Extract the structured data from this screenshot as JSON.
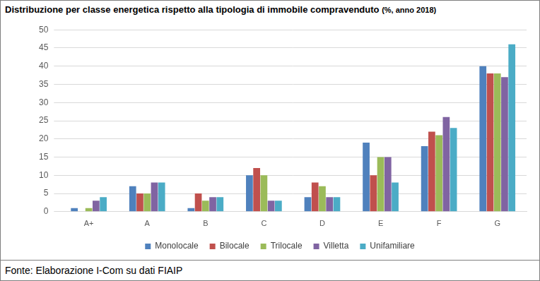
{
  "chart_data": {
    "type": "bar",
    "title": "Distribuzione per classe energetica rispetto alla tipologia di immobile compravenduto",
    "subtitle": "(%, anno 2018)",
    "annotations": [
      "Fonte: Elaborazione I-Com su dati FIAIP"
    ],
    "categories": [
      "A+",
      "A",
      "B",
      "C",
      "D",
      "E",
      "F",
      "G"
    ],
    "series": [
      {
        "name": "Monolocale",
        "color": "#4f81bd",
        "values": [
          1,
          7,
          1,
          10,
          4,
          19,
          18,
          40
        ]
      },
      {
        "name": "Bilocale",
        "color": "#c0504d",
        "values": [
          0,
          5,
          5,
          12,
          8,
          10,
          22,
          38
        ]
      },
      {
        "name": "Trilocale",
        "color": "#9bbb59",
        "values": [
          1,
          5,
          3,
          10,
          7,
          15,
          21,
          38
        ]
      },
      {
        "name": "Villetta",
        "color": "#8064a2",
        "values": [
          3,
          8,
          4,
          3,
          4,
          15,
          26,
          37
        ]
      },
      {
        "name": "Unifamiliare",
        "color": "#4bacc6",
        "values": [
          4,
          8,
          4,
          3,
          4,
          8,
          23,
          46
        ]
      }
    ],
    "ylim": [
      0,
      50
    ],
    "yticks": [
      0,
      5,
      10,
      15,
      20,
      25,
      30,
      35,
      40,
      45,
      50
    ],
    "grid": true,
    "legend": "bottom"
  }
}
